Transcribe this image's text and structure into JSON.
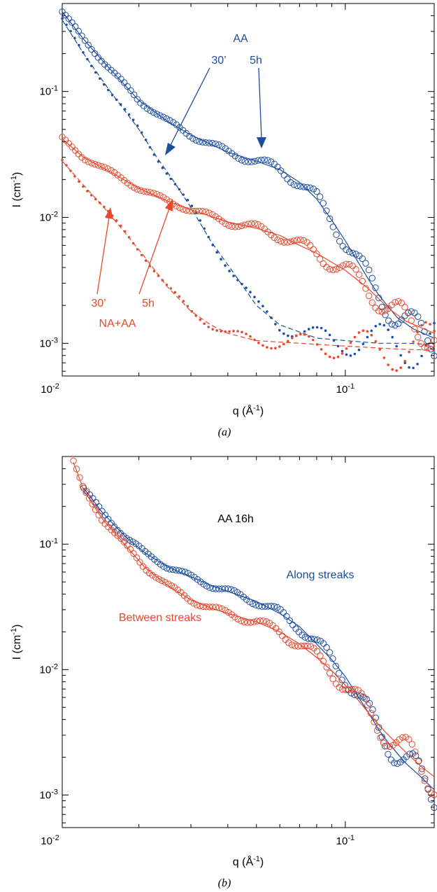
{
  "colors": {
    "blue": "#1d4ea0",
    "red": "#e8482c",
    "axis": "#000000"
  },
  "chart_data": [
    {
      "panel": "(a)",
      "type": "scatter",
      "xscale": "log",
      "yscale": "log",
      "xlim": [
        0.011,
        0.2
      ],
      "ylim": [
        0.00055,
        0.5
      ],
      "xticks": [
        {
          "value": 0.01,
          "base": "10",
          "exp": "-2"
        },
        {
          "value": 0.1,
          "base": "10",
          "exp": "-1"
        }
      ],
      "yticks": [
        {
          "value": 0.001,
          "base": "10",
          "exp": "-3"
        },
        {
          "value": 0.01,
          "base": "10",
          "exp": "-2"
        },
        {
          "value": 0.1,
          "base": "10",
          "exp": "-1"
        }
      ],
      "xlabel": {
        "main": "q (Å",
        "sup": "-1",
        "close": ")"
      },
      "ylabel": {
        "main": "I (cm",
        "sup": "-1",
        "close": ")"
      },
      "annotations": [
        {
          "text": "AA",
          "color": "blue"
        },
        {
          "text": "30’",
          "color": "blue"
        },
        {
          "text": "5h",
          "color": "blue"
        },
        {
          "text": "30’",
          "color": "red"
        },
        {
          "text": "5h",
          "color": "red"
        },
        {
          "text": "NA+AA",
          "color": "red"
        }
      ],
      "series": [
        {
          "label_ref": "AA 5h",
          "color": "blue",
          "marker": "open-circle",
          "fit": "solid",
          "x": [
            0.011,
            0.013,
            0.016,
            0.02,
            0.025,
            0.03,
            0.04,
            0.05,
            0.06,
            0.07,
            0.08,
            0.09,
            0.1,
            0.11,
            0.12,
            0.13,
            0.15,
            0.17,
            0.2
          ],
          "y": [
            0.43,
            0.26,
            0.15,
            0.085,
            0.058,
            0.045,
            0.033,
            0.028,
            0.024,
            0.019,
            0.014,
            0.0095,
            0.0065,
            0.0045,
            0.0032,
            0.0024,
            0.0016,
            0.0013,
            0.0011
          ]
        },
        {
          "label_ref": "AA 30’",
          "color": "blue",
          "marker": "dot",
          "fit": "dashed",
          "x": [
            0.011,
            0.013,
            0.016,
            0.02,
            0.023,
            0.026,
            0.03,
            0.035,
            0.04,
            0.05,
            0.06,
            0.08,
            0.1,
            0.13,
            0.16,
            0.2
          ],
          "y": [
            0.37,
            0.2,
            0.1,
            0.05,
            0.03,
            0.02,
            0.012,
            0.0065,
            0.0042,
            0.002,
            0.0014,
            0.0011,
            0.00105,
            0.001,
            0.001,
            0.00098
          ]
        },
        {
          "label_ref": "NA+AA 5h",
          "color": "red",
          "marker": "open-circle",
          "fit": "solid",
          "x": [
            0.011,
            0.013,
            0.016,
            0.02,
            0.025,
            0.03,
            0.04,
            0.05,
            0.06,
            0.07,
            0.08,
            0.09,
            0.1,
            0.12,
            0.14,
            0.16,
            0.2
          ],
          "y": [
            0.042,
            0.03,
            0.023,
            0.017,
            0.0135,
            0.0115,
            0.0092,
            0.0082,
            0.0072,
            0.006,
            0.0052,
            0.0044,
            0.0038,
            0.0027,
            0.0019,
            0.0015,
            0.0012
          ]
        },
        {
          "label_ref": "NA+AA 30’",
          "color": "red",
          "marker": "dot",
          "fit": "dashed",
          "x": [
            0.011,
            0.013,
            0.015,
            0.018,
            0.021,
            0.025,
            0.03,
            0.035,
            0.04,
            0.05,
            0.07,
            0.1,
            0.15,
            0.2
          ],
          "y": [
            0.028,
            0.018,
            0.0125,
            0.0075,
            0.0048,
            0.0028,
            0.0018,
            0.0014,
            0.0012,
            0.00105,
            0.001,
            0.00095,
            0.0009,
            0.00088
          ]
        }
      ]
    },
    {
      "panel": "(b)",
      "type": "scatter",
      "xscale": "log",
      "yscale": "log",
      "xlim": [
        0.011,
        0.2
      ],
      "ylim": [
        0.00055,
        0.5
      ],
      "xticks": [
        {
          "value": 0.01,
          "base": "10",
          "exp": "-2"
        },
        {
          "value": 0.1,
          "base": "10",
          "exp": "-1"
        }
      ],
      "yticks": [
        {
          "value": 0.001,
          "base": "10",
          "exp": "-3"
        },
        {
          "value": 0.01,
          "base": "10",
          "exp": "-2"
        },
        {
          "value": 0.1,
          "base": "10",
          "exp": "-1"
        }
      ],
      "xlabel": {
        "main": "q (Å",
        "sup": "-1",
        "close": ")"
      },
      "ylabel": {
        "main": "I (cm",
        "sup": "-1",
        "close": ")"
      },
      "annotations": [
        {
          "text": "AA 16h",
          "color": "black"
        },
        {
          "text": "Along streaks",
          "color": "blue"
        },
        {
          "text": "Between streaks",
          "color": "red"
        }
      ],
      "series": [
        {
          "label_ref": "Along streaks",
          "color": "blue",
          "marker": "open-circle",
          "fit": "solid",
          "x": [
            0.013,
            0.015,
            0.018,
            0.021,
            0.025,
            0.03,
            0.035,
            0.04,
            0.05,
            0.06,
            0.07,
            0.08,
            0.09,
            0.1,
            0.11,
            0.12,
            0.13,
            0.14,
            0.16,
            0.18,
            0.2
          ],
          "y": [
            0.28,
            0.18,
            0.115,
            0.085,
            0.066,
            0.055,
            0.047,
            0.042,
            0.035,
            0.028,
            0.022,
            0.016,
            0.012,
            0.0088,
            0.0062,
            0.0045,
            0.0033,
            0.0026,
            0.0018,
            0.0014,
            0.0011
          ]
        },
        {
          "label_ref": "Between streaks",
          "color": "red",
          "marker": "open-circle",
          "fit": "solid",
          "x": [
            0.012,
            0.013,
            0.015,
            0.018,
            0.021,
            0.025,
            0.03,
            0.035,
            0.04,
            0.05,
            0.06,
            0.07,
            0.08,
            0.09,
            0.1,
            0.11,
            0.12,
            0.13,
            0.14,
            0.16,
            0.18,
            0.2
          ],
          "y": [
            0.45,
            0.27,
            0.16,
            0.098,
            0.065,
            0.047,
            0.036,
            0.031,
            0.028,
            0.024,
            0.02,
            0.016,
            0.0125,
            0.0098,
            0.0075,
            0.0058,
            0.0045,
            0.0036,
            0.003,
            0.0022,
            0.0017,
            0.0014
          ]
        }
      ]
    }
  ]
}
